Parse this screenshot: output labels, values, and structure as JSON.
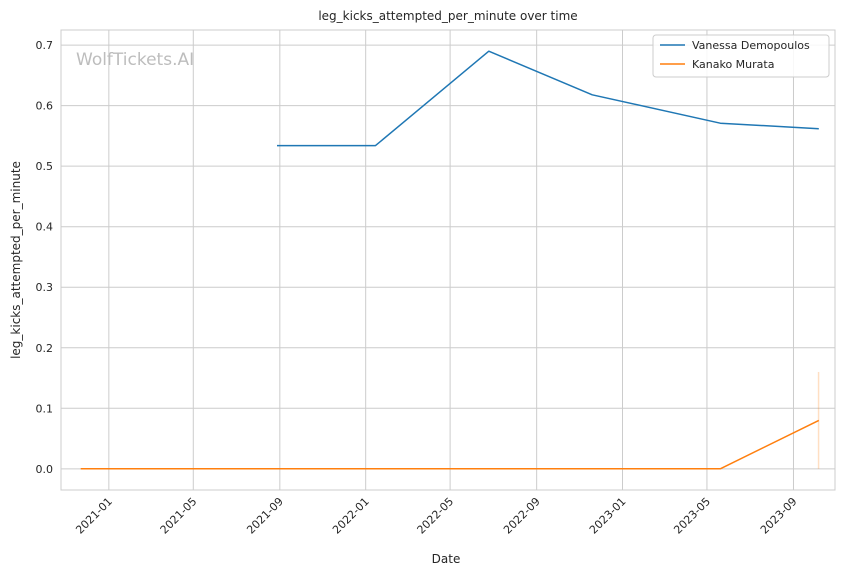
{
  "chart_data": {
    "type": "line",
    "title": "leg_kicks_attempted_per_minute over time",
    "xlabel": "Date",
    "ylabel": "leg_kicks_attempted_per_minute",
    "watermark": "WolfTickets.AI",
    "xlim": [
      "2020-10-25",
      "2023-10-30"
    ],
    "ylim": [
      -0.035,
      0.725
    ],
    "x_ticks": [
      "2021-01",
      "2021-05",
      "2021-09",
      "2022-01",
      "2022-05",
      "2022-09",
      "2023-01",
      "2023-05",
      "2023-09"
    ],
    "y_ticks": [
      "0.0",
      "0.1",
      "0.2",
      "0.3",
      "0.4",
      "0.5",
      "0.6",
      "0.7"
    ],
    "grid": true,
    "legend_position": "top-right",
    "series": [
      {
        "name": "Vanessa Demopoulos",
        "color": "#1f77b4",
        "points": [
          {
            "x": "2021-08-28",
            "y": 0.534
          },
          {
            "x": "2022-01-15",
            "y": 0.534
          },
          {
            "x": "2022-06-25",
            "y": 0.69
          },
          {
            "x": "2022-11-19",
            "y": 0.618
          },
          {
            "x": "2023-05-20",
            "y": 0.571
          },
          {
            "x": "2023-10-07",
            "y": 0.562
          }
        ]
      },
      {
        "name": "Kanako Murata",
        "color": "#ff7f0e",
        "points": [
          {
            "x": "2020-11-22",
            "y": 0.0
          },
          {
            "x": "2023-05-20",
            "y": 0.0
          },
          {
            "x": "2023-10-07",
            "y": 0.08
          }
        ],
        "error_band": {
          "x": "2023-10-07",
          "low": 0.0,
          "high": 0.16
        }
      }
    ]
  }
}
